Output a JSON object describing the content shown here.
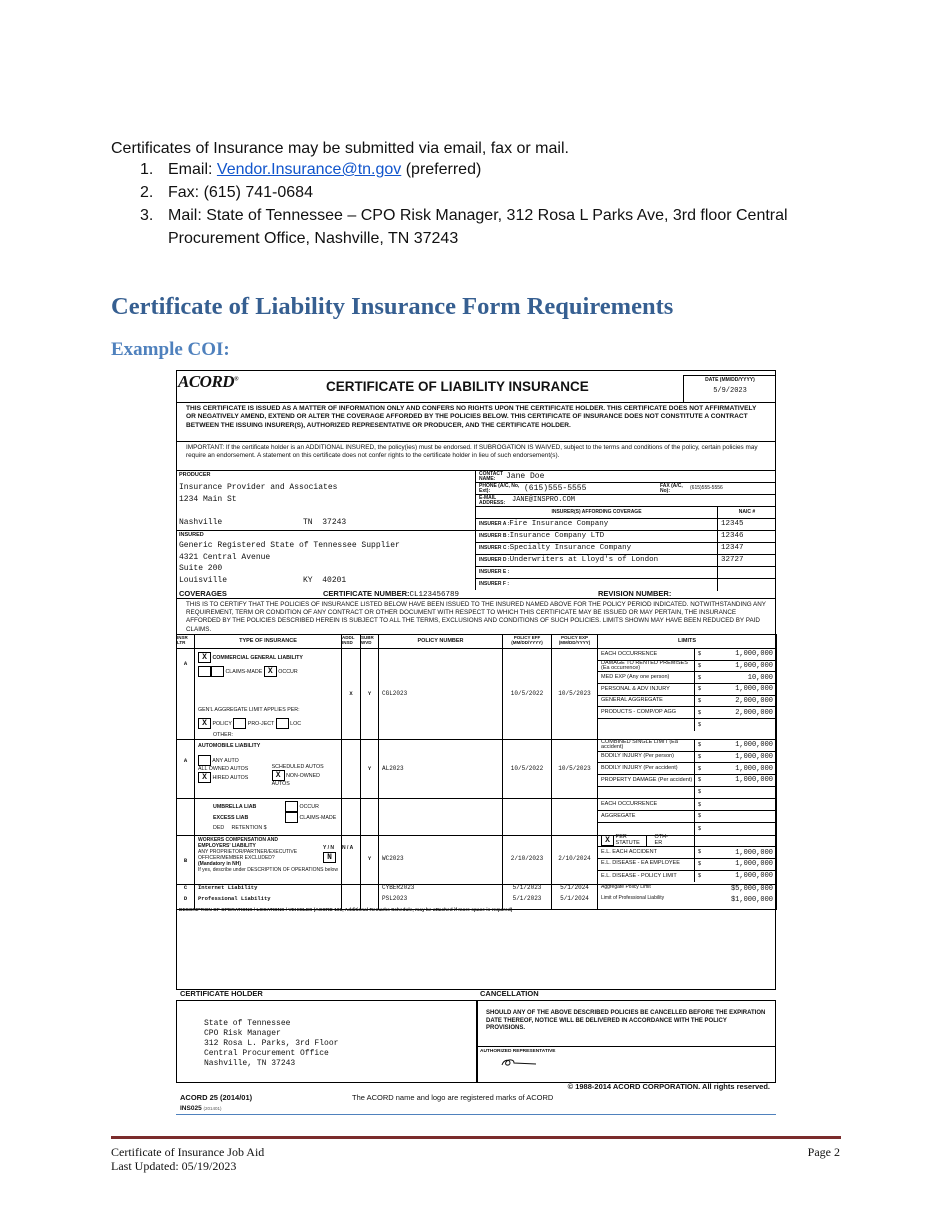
{
  "intro": "Certificates of Insurance may be submitted via email, fax or mail.",
  "submission_methods": [
    {
      "num": "1.",
      "prefix": "Email: ",
      "link": "Vendor.Insurance@tn.gov",
      "suffix": " (preferred)"
    },
    {
      "num": "2.",
      "text": "Fax: (615) 741-0684"
    },
    {
      "num": "3.",
      "text": "Mail: State of Tennessee – CPO Risk Manager, 312 Rosa L Parks Ave, 3rd floor Central Procurement Office, Nashville, TN 37243"
    }
  ],
  "heading": "Certificate of Liability Insurance Form Requirements",
  "subheading": "Example COI:",
  "form": {
    "logo": "ACORD",
    "title": "CERTIFICATE OF LIABILITY INSURANCE",
    "date_label": "DATE (MM/DD/YYYY)",
    "date": "5/9/2023",
    "notice": "THIS CERTIFICATE IS ISSUED AS A MATTER OF INFORMATION ONLY AND CONFERS NO RIGHTS UPON THE CERTIFICATE HOLDER. THIS CERTIFICATE DOES NOT AFFIRMATIVELY OR NEGATIVELY AMEND, EXTEND OR ALTER THE COVERAGE AFFORDED BY THE POLICIES BELOW. THIS CERTIFICATE OF INSURANCE DOES NOT CONSTITUTE A CONTRACT BETWEEN THE ISSUING INSURER(S), AUTHORIZED REPRESENTATIVE OR PRODUCER, AND THE CERTIFICATE HOLDER.",
    "important": "IMPORTANT: If the certificate holder is an ADDITIONAL INSURED, the policy(ies) must be endorsed. If SUBROGATION IS WAIVED, subject to the terms and conditions of the policy, certain policies may require an endorsement. A statement on this certificate does not confer rights to the certificate holder in lieu of such endorsement(s).",
    "producer": {
      "label": "PRODUCER",
      "name": "Insurance Provider and Associates",
      "street": "1234 Main St",
      "city": "Nashville",
      "state": "TN",
      "zip": "37243"
    },
    "insured": {
      "label": "INSURED",
      "name": "Generic Registered State of Tennessee Supplier",
      "street": "4321 Central Avenue",
      "suite": "Suite 200",
      "city": "Louisville",
      "state": "KY",
      "zip": "40201"
    },
    "contact": {
      "name_label": "CONTACT NAME:",
      "name": "Jane Doe",
      "phone_label": "PHONE (A/C, No, Ext):",
      "phone": "(615)555-5555",
      "fax_label": "FAX (A/C, No):",
      "fax": "(615)555-5556",
      "email_label": "E-MAIL ADDRESS:",
      "email": "JANE@INSPRO.COM"
    },
    "insurers_header": "INSURER(S) AFFORDING COVERAGE",
    "naic_header": "NAIC #",
    "insurers": [
      {
        "label": "INSURER A :",
        "name": "Fire Insurance Company",
        "naic": "12345"
      },
      {
        "label": "INSURER B :",
        "name": "Insurance Company LTD",
        "naic": "12346"
      },
      {
        "label": "INSURER C :",
        "name": "Specialty Insurance Company",
        "naic": "12347"
      },
      {
        "label": "INSURER D :",
        "name": "Underwriters at Lloyd's of London",
        "naic": "32727"
      },
      {
        "label": "INSURER E :",
        "name": "",
        "naic": ""
      },
      {
        "label": "INSURER F :",
        "name": "",
        "naic": ""
      }
    ],
    "coverages_label": "COVERAGES",
    "cert_number_label": "CERTIFICATE NUMBER:",
    "cert_number": "CL123456789",
    "revision_label": "REVISION NUMBER:",
    "certify_text": "THIS IS TO CERTIFY THAT THE POLICIES OF INSURANCE LISTED BELOW HAVE BEEN ISSUED TO THE INSURED NAMED ABOVE FOR THE POLICY PERIOD INDICATED. NOTWITHSTANDING ANY REQUIREMENT, TERM OR CONDITION OF ANY CONTRACT OR OTHER DOCUMENT WITH RESPECT TO WHICH THIS CERTIFICATE MAY BE ISSUED OR MAY PERTAIN, THE INSURANCE AFFORDED BY THE POLICIES DESCRIBED HEREIN IS SUBJECT TO ALL THE TERMS, EXCLUSIONS AND CONDITIONS OF SUCH POLICIES. LIMITS SHOWN MAY HAVE BEEN REDUCED BY PAID CLAIMS.",
    "columns": {
      "ltr": "INSR LTR",
      "type": "TYPE OF INSURANCE",
      "addl": "ADDL INSD",
      "subr": "SUBR WVD",
      "policy": "POLICY NUMBER",
      "eff": "POLICY EFF (MM/DD/YYYY)",
      "exp": "POLICY EXP (MM/DD/YYYY)",
      "limits": "LIMITS"
    },
    "gl": {
      "ltr": "A",
      "title": "COMMERCIAL GENERAL LIABILITY",
      "title_check": "X",
      "claims_made": "CLAIMS-MADE",
      "occur": "OCCUR",
      "occur_check": "X",
      "agg_label": "GEN'L AGGREGATE LIMIT APPLIES PER:",
      "policy": "POLICY",
      "policy_check": "X",
      "project": "PRO-JECT",
      "loc": "LOC",
      "other": "OTHER:",
      "addl": "X",
      "subr": "Y",
      "policy_number": "CGL2023",
      "eff": "10/5/2022",
      "exp": "10/5/2023",
      "limits": [
        {
          "label": "EACH OCCURRENCE",
          "value": "1,000,000"
        },
        {
          "label": "DAMAGE TO RENTED PREMISES (Ea occurrence)",
          "value": "1,000,000"
        },
        {
          "label": "MED EXP (Any one person)",
          "value": "10,000"
        },
        {
          "label": "PERSONAL & ADV INJURY",
          "value": "1,000,000"
        },
        {
          "label": "GENERAL AGGREGATE",
          "value": "2,000,000"
        },
        {
          "label": "PRODUCTS - COMP/OP AGG",
          "value": "2,000,000"
        },
        {
          "label": "",
          "value": ""
        }
      ]
    },
    "auto": {
      "ltr": "A",
      "title": "AUTOMOBILE LIABILITY",
      "any_auto": "ANY AUTO",
      "all_owned": "ALL OWNED AUTOS",
      "scheduled": "SCHEDULED AUTOS",
      "hired": "HIRED AUTOS",
      "hired_check": "X",
      "non_owned": "NON-OWNED AUTOS",
      "non_owned_check": "X",
      "subr": "Y",
      "policy_number": "AL2023",
      "eff": "10/5/2022",
      "exp": "10/5/2023",
      "limits": [
        {
          "label": "COMBINED SINGLE LIMIT (Ea accident)",
          "value": "1,000,000"
        },
        {
          "label": "BODILY INJURY (Per person)",
          "value": "1,000,000"
        },
        {
          "label": "BODILY INJURY (Per accident)",
          "value": "1,000,000"
        },
        {
          "label": "PROPERTY DAMAGE (Per accident)",
          "value": "1,000,000"
        },
        {
          "label": "",
          "value": ""
        }
      ]
    },
    "umbrella": {
      "umbrella": "UMBRELLA LIAB",
      "excess": "EXCESS LIAB",
      "occur": "OCCUR",
      "claims_made": "CLAIMS-MADE",
      "ded": "DED",
      "retention": "RETENTION $",
      "limits": [
        {
          "label": "EACH OCCURRENCE",
          "value": ""
        },
        {
          "label": "AGGREGATE",
          "value": ""
        },
        {
          "label": "",
          "value": ""
        }
      ]
    },
    "wc": {
      "ltr": "B",
      "title": "WORKERS COMPENSATION AND EMPLOYERS' LIABILITY",
      "yn_label": "Y / N",
      "question": "ANY PROPRIETOR/PARTNER/EXECUTIVE OFFICER/MEMBER EXCLUDED?",
      "mandatory": "(Mandatory in NH)",
      "describe": "If yes, describe under DESCRIPTION OF OPERATIONS below",
      "yn": "N",
      "na": "N / A",
      "subr": "Y",
      "policy_number": "WC2023",
      "eff": "2/10/2023",
      "exp": "2/10/2024",
      "per_statute": "PER STATUTE",
      "per_statute_check": "X",
      "other": "OTH-ER",
      "limits": [
        {
          "label": "E.L. EACH ACCIDENT",
          "value": "1,000,000"
        },
        {
          "label": "E.L. DISEASE - EA EMPLOYEE",
          "value": "1,000,000"
        },
        {
          "label": "E.L. DISEASE - POLICY LIMIT",
          "value": "1,000,000"
        }
      ]
    },
    "other_policies": [
      {
        "ltr": "C",
        "type": "Internet Liability",
        "policy_number": "CYBER2023",
        "eff": "5/1/2023",
        "exp": "5/1/2024",
        "limit_label": "Aggregate Policy Limit",
        "limit": "$5,000,000"
      },
      {
        "ltr": "D",
        "type": "Professional Liability",
        "policy_number": "PSL2023",
        "eff": "5/1/2023",
        "exp": "5/1/2024",
        "limit_label": "Limit of Professional Liability",
        "limit": "$1,000,000"
      }
    ],
    "dollar": "$",
    "description_label": "DESCRIPTION OF OPERATIONS / LOCATIONS / VEHICLES (ACORD 101, Additional Remarks Schedule, may be attached if more space is required)",
    "holder_label": "CERTIFICATE HOLDER",
    "holder_lines": [
      "State of Tennessee",
      "CPO Risk Manager",
      "312 Rosa L. Parks, 3rd Floor",
      "Central Procurement Office",
      "Nashville, TN  37243"
    ],
    "cancellation_label": "CANCELLATION",
    "cancellation_text": "SHOULD ANY OF THE ABOVE DESCRIBED POLICIES BE CANCELLED BEFORE THE EXPIRATION DATE THEREOF, NOTICE WILL BE DELIVERED IN ACCORDANCE WITH THE POLICY PROVISIONS.",
    "auth_rep_label": "AUTHORIZED REPRESENTATIVE",
    "copyright": "© 1988-2014 ACORD CORPORATION.  All rights reserved.",
    "form_id": "ACORD 25 (2014/01)",
    "marks": "The ACORD name and logo are registered marks of ACORD",
    "ins_code": "INS025",
    "ins_code_date": "(201401)"
  },
  "footer": {
    "title": "Certificate of Insurance Job Aid",
    "updated": "Last Updated: 05/19/2023",
    "page": "Page 2"
  }
}
